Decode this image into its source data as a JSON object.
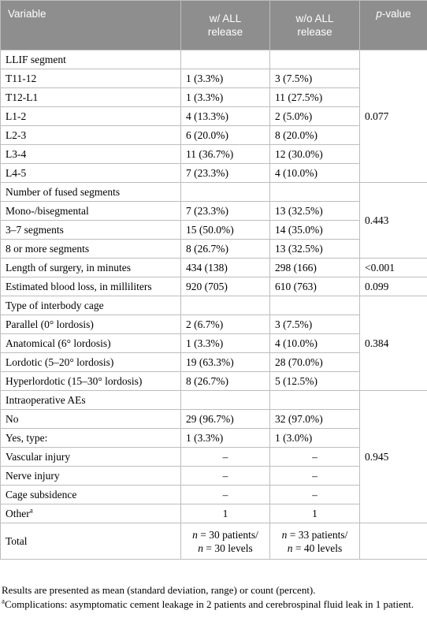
{
  "headers": {
    "variable": "Variable",
    "with_all": [
      "w/ ALL",
      "release"
    ],
    "without_all": [
      "w/o ALL",
      "release"
    ],
    "pvalue_italic": "p",
    "pvalue_rest": "-value"
  },
  "groups": [
    {
      "label": "LLIF segment",
      "pvalue": "0.077",
      "rows": [
        {
          "label": "T11-12",
          "with": "1 (3.3%)",
          "without": "3 (7.5%)"
        },
        {
          "label": "T12-L1",
          "with": "1 (3.3%)",
          "without": "11 (27.5%)"
        },
        {
          "label": "L1-2",
          "with": "4 (13.3%)",
          "without": "2 (5.0%)"
        },
        {
          "label": "L2-3",
          "with": "6 (20.0%)",
          "without": "8 (20.0%)"
        },
        {
          "label": "L3-4",
          "with": "11 (36.7%)",
          "without": "12 (30.0%)"
        },
        {
          "label": "L4-5",
          "with": "7 (23.3%)",
          "without": "4 (10.0%)"
        }
      ]
    },
    {
      "label": "Number of fused segments",
      "pvalue": "0.443",
      "rows": [
        {
          "label": "Mono-/bisegmental",
          "with": "7 (23.3%)",
          "without": "13 (32.5%)"
        },
        {
          "label": "3–7 segments",
          "with": "15 (50.0%)",
          "without": "14 (35.0%)"
        },
        {
          "label": "8 or more segments",
          "with": "8 (26.7%)",
          "without": "13 (32.5%)"
        }
      ]
    }
  ],
  "singles": [
    {
      "label": "Length of surgery, in minutes",
      "with": "434 (138)",
      "without": "298 (166)",
      "pvalue": "<0.001"
    },
    {
      "label": "Estimated blood loss, in milliliters",
      "with": "920 (705)",
      "without": "610 (763)",
      "pvalue": "0.099"
    }
  ],
  "cage": {
    "label": "Type of interbody cage",
    "pvalue": "0.384",
    "rows": [
      {
        "label": "Parallel (0° lordosis)",
        "with": "2 (6.7%)",
        "without": "3 (7.5%)"
      },
      {
        "label": "Anatomical (6° lordosis)",
        "with": "1 (3.3%)",
        "without": "4 (10.0%)"
      },
      {
        "label": "Lordotic (5–20° lordosis)",
        "with": "19 (63.3%)",
        "without": "28 (70.0%)"
      },
      {
        "label": "Hyperlordotic (15–30° lordosis)",
        "with": "8 (26.7%)",
        "without": "5 (12.5%)"
      }
    ]
  },
  "aes": {
    "label": "Intraoperative AEs",
    "pvalue": "0.945",
    "rows": [
      {
        "label": "No",
        "with": "29 (96.7%)",
        "without": "32 (97.0%)"
      },
      {
        "label": "Yes, type:",
        "with": "1 (3.3%)",
        "without": "1 (3.0%)"
      },
      {
        "label": "Vascular injury",
        "with": "–",
        "without": "–"
      },
      {
        "label": "Nerve injury",
        "with": "–",
        "without": "–"
      },
      {
        "label": "Cage subsidence",
        "with": "–",
        "without": "–"
      }
    ],
    "other": {
      "label": "Other",
      "sup": "a",
      "with": "1",
      "without": "1"
    }
  },
  "total": {
    "label": "Total",
    "with": {
      "n_italic": "n",
      "line1_rest": " = 30 patients/",
      "line2_rest": " = 30 levels"
    },
    "without": {
      "n_italic": "n",
      "line1_rest": " = 33 patients/",
      "line2_rest": " = 40 levels"
    }
  },
  "notes": {
    "results": "Results are presented as mean (standard deviation, range) or count (percent).",
    "footnote_sup": "a",
    "footnote": "Complications: asymptomatic cement leakage in 2 patients and cerebrospinal fluid leak in 1 patient."
  }
}
